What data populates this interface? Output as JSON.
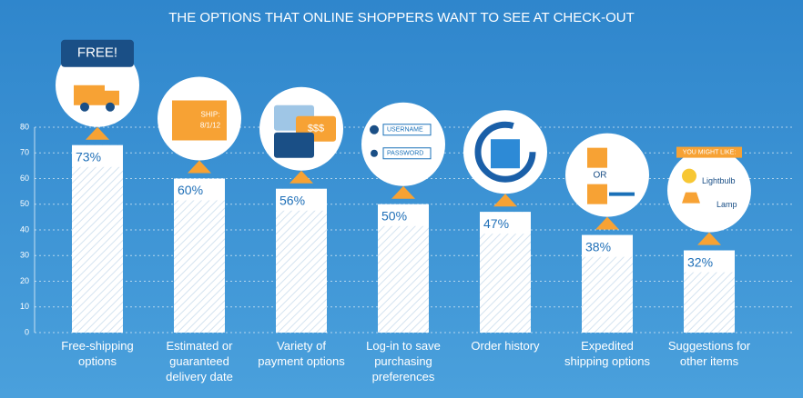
{
  "chart_data": {
    "type": "bar",
    "title": "THE OPTIONS THAT ONLINE SHOPPERS WANT TO SEE AT CHECK-OUT",
    "categories": [
      "Free-shipping options",
      "Estimated or guaranteed delivery date",
      "Variety of payment options",
      "Log-in to save purchasing preferences",
      "Order history",
      "Expedited shipping options",
      "Suggestions for other items"
    ],
    "values": [
      73,
      60,
      56,
      50,
      47,
      38,
      32
    ],
    "value_labels": [
      "73%",
      "60%",
      "56%",
      "50%",
      "47%",
      "38%",
      "32%"
    ],
    "color": "#ffffff",
    "ylim": [
      0,
      80
    ],
    "yticks": [
      0,
      10,
      20,
      30,
      40,
      50,
      60,
      70,
      80
    ],
    "grid": true,
    "annotations": [
      "FREE!",
      "SHIP:",
      "8/1/12",
      "$$$",
      "USERNAME",
      "PASSWORD",
      "OR",
      "YOU MIGHT LIKE:",
      "Lightbulb",
      "Lamp"
    ]
  }
}
